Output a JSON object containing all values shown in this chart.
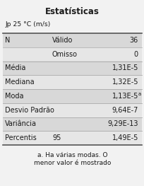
{
  "title": "Estatísticas",
  "subtitle": "Jp 25 °C (m/s)",
  "rows": [
    [
      "N",
      "Válido",
      "36"
    ],
    [
      "",
      "Omisso",
      "0"
    ],
    [
      "Média",
      "",
      "1,31E-5"
    ],
    [
      "Mediana",
      "",
      "1,32E-5"
    ],
    [
      "Moda",
      "",
      "1,13E-5"
    ],
    [
      "Desvio Padrão",
      "",
      "9,64E-7"
    ],
    [
      "Variância",
      "",
      "9,29E-13"
    ],
    [
      "Percentis",
      "95",
      "1,49E-5"
    ]
  ],
  "moda_superscript": "a",
  "footnote_line1": "a. Ha várias modas. O",
  "footnote_line2": "menor valor é mostrado",
  "fig_bg": "#f2f2f2",
  "row_colors": [
    "#d8d8d8",
    "#e6e6e6"
  ],
  "border_color": "#888888",
  "text_color": "#1a1a1a",
  "title_fontsize": 8.5,
  "body_fontsize": 7.0,
  "footnote_fontsize": 6.5
}
